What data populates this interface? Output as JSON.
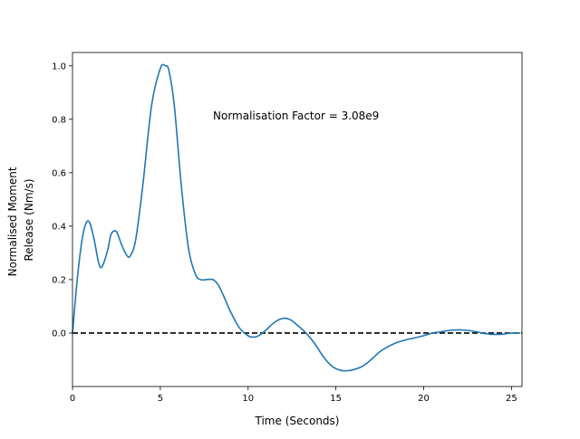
{
  "chart_data": {
    "type": "line",
    "title": "",
    "xlabel": "Time (Seconds)",
    "ylabel_lines": [
      "Normalised Moment",
      "Release (Nm/s)"
    ],
    "xlim": [
      0,
      25.6
    ],
    "ylim": [
      -0.2,
      1.05
    ],
    "xticks": [
      0,
      5,
      10,
      15,
      20,
      25
    ],
    "yticks": [
      0.0,
      0.2,
      0.4,
      0.6,
      0.8,
      1.0
    ],
    "xtick_labels": [
      "0",
      "5",
      "10",
      "15",
      "20",
      "25"
    ],
    "ytick_labels": [
      "0.0",
      "0.2",
      "0.4",
      "0.6",
      "0.8",
      "1.0"
    ],
    "grid": false,
    "annotation": "Normalisation Factor = 3.08e9",
    "reference_line": {
      "y": 0.0,
      "style": "dashed",
      "color": "#000000"
    },
    "series": [
      {
        "color": "#1f77b4",
        "x": [
          0.0,
          0.3,
          0.6,
          0.9,
          1.2,
          1.5,
          1.7,
          2.0,
          2.2,
          2.5,
          2.8,
          3.1,
          3.3,
          3.6,
          4.0,
          4.5,
          5.0,
          5.3,
          5.5,
          5.8,
          6.2,
          6.6,
          7.0,
          7.3,
          7.6,
          8.0,
          8.3,
          8.6,
          9.0,
          9.5,
          10.0,
          10.3,
          10.6,
          11.0,
          11.5,
          12.0,
          12.4,
          12.8,
          13.3,
          13.8,
          14.3,
          14.8,
          15.3,
          15.8,
          16.1,
          16.5,
          17.0,
          17.5,
          18.0,
          18.5,
          19.0,
          19.5,
          20.0,
          20.5,
          21.0,
          21.5,
          22.0,
          22.5,
          23.0,
          23.5,
          24.0,
          24.5,
          25.0,
          25.5
        ],
        "y": [
          0.0,
          0.22,
          0.37,
          0.42,
          0.36,
          0.26,
          0.25,
          0.31,
          0.37,
          0.38,
          0.33,
          0.29,
          0.29,
          0.35,
          0.55,
          0.85,
          0.99,
          1.0,
          0.98,
          0.85,
          0.55,
          0.32,
          0.22,
          0.2,
          0.2,
          0.2,
          0.18,
          0.14,
          0.08,
          0.02,
          -0.01,
          -0.015,
          -0.01,
          0.01,
          0.04,
          0.055,
          0.05,
          0.03,
          0.0,
          -0.04,
          -0.09,
          -0.125,
          -0.14,
          -0.14,
          -0.135,
          -0.125,
          -0.1,
          -0.07,
          -0.05,
          -0.035,
          -0.025,
          -0.018,
          -0.01,
          0.0,
          0.005,
          0.01,
          0.012,
          0.01,
          0.005,
          -0.002,
          -0.005,
          -0.004,
          0.0,
          0.0
        ]
      }
    ]
  }
}
